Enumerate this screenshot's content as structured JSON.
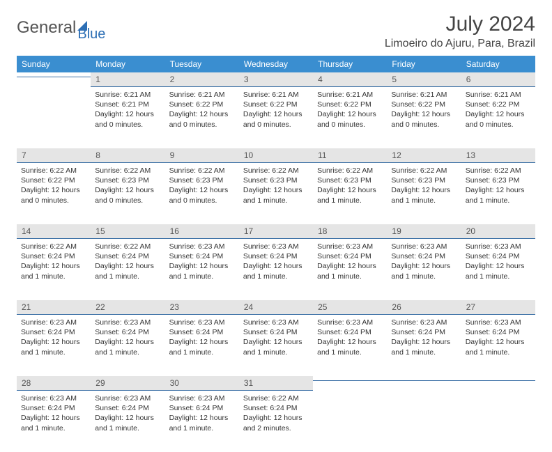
{
  "logo": {
    "text1": "General",
    "text2": "Blue"
  },
  "title": "July 2024",
  "location": "Limoeiro do Ajuru, Para, Brazil",
  "colors": {
    "header_bg": "#3a8ed0",
    "header_fg": "#ffffff",
    "daynum_bg": "#e5e5e5",
    "rule": "#3a6fa5",
    "brand_blue": "#2d6fb5"
  },
  "weekdays": [
    "Sunday",
    "Monday",
    "Tuesday",
    "Wednesday",
    "Thursday",
    "Friday",
    "Saturday"
  ],
  "weeks": [
    [
      null,
      {
        "n": "1",
        "sr": "6:21 AM",
        "ss": "6:21 PM",
        "dl": "12 hours and 0 minutes."
      },
      {
        "n": "2",
        "sr": "6:21 AM",
        "ss": "6:22 PM",
        "dl": "12 hours and 0 minutes."
      },
      {
        "n": "3",
        "sr": "6:21 AM",
        "ss": "6:22 PM",
        "dl": "12 hours and 0 minutes."
      },
      {
        "n": "4",
        "sr": "6:21 AM",
        "ss": "6:22 PM",
        "dl": "12 hours and 0 minutes."
      },
      {
        "n": "5",
        "sr": "6:21 AM",
        "ss": "6:22 PM",
        "dl": "12 hours and 0 minutes."
      },
      {
        "n": "6",
        "sr": "6:21 AM",
        "ss": "6:22 PM",
        "dl": "12 hours and 0 minutes."
      }
    ],
    [
      {
        "n": "7",
        "sr": "6:22 AM",
        "ss": "6:22 PM",
        "dl": "12 hours and 0 minutes."
      },
      {
        "n": "8",
        "sr": "6:22 AM",
        "ss": "6:23 PM",
        "dl": "12 hours and 0 minutes."
      },
      {
        "n": "9",
        "sr": "6:22 AM",
        "ss": "6:23 PM",
        "dl": "12 hours and 0 minutes."
      },
      {
        "n": "10",
        "sr": "6:22 AM",
        "ss": "6:23 PM",
        "dl": "12 hours and 1 minute."
      },
      {
        "n": "11",
        "sr": "6:22 AM",
        "ss": "6:23 PM",
        "dl": "12 hours and 1 minute."
      },
      {
        "n": "12",
        "sr": "6:22 AM",
        "ss": "6:23 PM",
        "dl": "12 hours and 1 minute."
      },
      {
        "n": "13",
        "sr": "6:22 AM",
        "ss": "6:23 PM",
        "dl": "12 hours and 1 minute."
      }
    ],
    [
      {
        "n": "14",
        "sr": "6:22 AM",
        "ss": "6:24 PM",
        "dl": "12 hours and 1 minute."
      },
      {
        "n": "15",
        "sr": "6:22 AM",
        "ss": "6:24 PM",
        "dl": "12 hours and 1 minute."
      },
      {
        "n": "16",
        "sr": "6:23 AM",
        "ss": "6:24 PM",
        "dl": "12 hours and 1 minute."
      },
      {
        "n": "17",
        "sr": "6:23 AM",
        "ss": "6:24 PM",
        "dl": "12 hours and 1 minute."
      },
      {
        "n": "18",
        "sr": "6:23 AM",
        "ss": "6:24 PM",
        "dl": "12 hours and 1 minute."
      },
      {
        "n": "19",
        "sr": "6:23 AM",
        "ss": "6:24 PM",
        "dl": "12 hours and 1 minute."
      },
      {
        "n": "20",
        "sr": "6:23 AM",
        "ss": "6:24 PM",
        "dl": "12 hours and 1 minute."
      }
    ],
    [
      {
        "n": "21",
        "sr": "6:23 AM",
        "ss": "6:24 PM",
        "dl": "12 hours and 1 minute."
      },
      {
        "n": "22",
        "sr": "6:23 AM",
        "ss": "6:24 PM",
        "dl": "12 hours and 1 minute."
      },
      {
        "n": "23",
        "sr": "6:23 AM",
        "ss": "6:24 PM",
        "dl": "12 hours and 1 minute."
      },
      {
        "n": "24",
        "sr": "6:23 AM",
        "ss": "6:24 PM",
        "dl": "12 hours and 1 minute."
      },
      {
        "n": "25",
        "sr": "6:23 AM",
        "ss": "6:24 PM",
        "dl": "12 hours and 1 minute."
      },
      {
        "n": "26",
        "sr": "6:23 AM",
        "ss": "6:24 PM",
        "dl": "12 hours and 1 minute."
      },
      {
        "n": "27",
        "sr": "6:23 AM",
        "ss": "6:24 PM",
        "dl": "12 hours and 1 minute."
      }
    ],
    [
      {
        "n": "28",
        "sr": "6:23 AM",
        "ss": "6:24 PM",
        "dl": "12 hours and 1 minute."
      },
      {
        "n": "29",
        "sr": "6:23 AM",
        "ss": "6:24 PM",
        "dl": "12 hours and 1 minute."
      },
      {
        "n": "30",
        "sr": "6:23 AM",
        "ss": "6:24 PM",
        "dl": "12 hours and 1 minute."
      },
      {
        "n": "31",
        "sr": "6:22 AM",
        "ss": "6:24 PM",
        "dl": "12 hours and 2 minutes."
      },
      null,
      null,
      null
    ]
  ],
  "labels": {
    "sunrise": "Sunrise:",
    "sunset": "Sunset:",
    "daylight": "Daylight:"
  }
}
